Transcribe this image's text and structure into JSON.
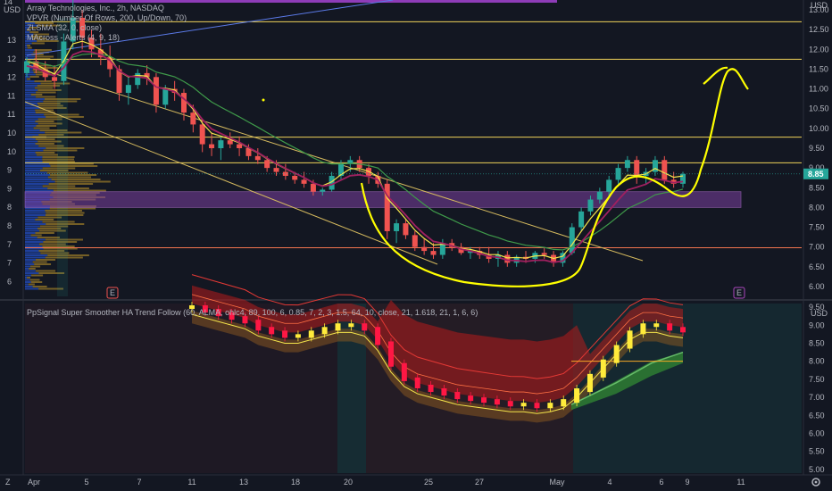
{
  "main_legend": {
    "title": "Array Technologies, Inc., 2h, NASDAQ",
    "vpvr": "VPVR (Number Of Rows, 200, Up/Down, 70)",
    "zlsma": "ZLSMA (32, 0, close)",
    "macross": "MAcross - Alerts (4, 9, 18)"
  },
  "sub_legend": {
    "title": "PpSignal Super Smoother HA Trend Follow (60, ALMA, ohlc4, 89, 100, 6, 0.85, 7, 2, 3, 1.5, 64, 10, close, 21, 1.618, 21, 1, 6, 6)"
  },
  "left_axis": {
    "unit": "USD",
    "top_value": "14",
    "ticks": [
      "13",
      "12",
      "12",
      "11",
      "11",
      "10",
      "10",
      "9",
      "9",
      "8",
      "8",
      "7",
      "7",
      "6"
    ]
  },
  "right_axis": {
    "unit": "USD",
    "ticks": [
      "13.00",
      "12.50",
      "12.00",
      "11.50",
      "11.00",
      "10.50",
      "10.00",
      "9.50",
      "9.00",
      "8.50",
      "8.00",
      "7.50",
      "7.00",
      "6.50",
      "6.00"
    ],
    "current_price_label": "8.85",
    "sub_unit": "USD",
    "sub_ticks": [
      "9.50",
      "9.00",
      "8.50",
      "8.00",
      "7.50",
      "7.00",
      "6.50",
      "6.00",
      "5.50",
      "5.00"
    ]
  },
  "x_axis": {
    "labels": [
      "Apr",
      "5",
      "7",
      "11",
      "13",
      "18",
      "20",
      "25",
      "27",
      "May",
      "4",
      "6",
      "9",
      "11"
    ]
  },
  "earnings_markers": [
    "E",
    "E"
  ],
  "corner_icon": "Z",
  "settings_icon": "gear-icon",
  "colors": {
    "background": "#131722",
    "up": "#26a69a",
    "down": "#ef5350",
    "horizontal_line": "#f0d35a",
    "trend_channel": "#d4b95e",
    "support_line": "#f2744f",
    "zone": "#7b3fa0",
    "drawing": "#ffff00",
    "zlsma": "#a02060",
    "ma_green": "#3f9a4a",
    "ma_yellow": "#f5e54b"
  },
  "chart_data": [
    {
      "type": "candlestick",
      "title": "Array Technologies, Inc., 2h, NASDAQ",
      "ylim": [
        5.75,
        13.25
      ],
      "x_labels": [
        "Apr",
        "5",
        "7",
        "11",
        "13",
        "18",
        "20",
        "25",
        "27",
        "May",
        "4",
        "6",
        "9",
        "11"
      ],
      "horizontal_levels": [
        12.7,
        11.75,
        9.78,
        9.13,
        6.98
      ],
      "zone": [
        8.0,
        8.4
      ],
      "last_price": 8.85,
      "ohlc": [
        [
          11.4,
          11.8,
          11.3,
          11.7
        ],
        [
          11.7,
          12.0,
          11.4,
          11.5
        ],
        [
          11.5,
          11.7,
          11.2,
          11.3
        ],
        [
          11.3,
          11.6,
          11.0,
          11.2
        ],
        [
          11.2,
          12.4,
          11.1,
          12.2
        ],
        [
          12.2,
          13.3,
          12.0,
          12.8
        ],
        [
          12.8,
          13.0,
          12.0,
          12.3
        ],
        [
          12.3,
          12.5,
          11.8,
          12.0
        ],
        [
          12.0,
          12.4,
          11.6,
          11.8
        ],
        [
          11.8,
          12.1,
          11.3,
          11.5
        ],
        [
          11.5,
          11.6,
          10.7,
          10.9
        ],
        [
          10.9,
          11.3,
          10.6,
          11.1
        ],
        [
          11.1,
          11.5,
          11.0,
          11.4
        ],
        [
          11.4,
          11.6,
          11.1,
          11.3
        ],
        [
          11.3,
          11.4,
          10.4,
          10.6
        ],
        [
          10.6,
          11.1,
          10.5,
          11.0
        ],
        [
          11.0,
          11.2,
          10.7,
          10.9
        ],
        [
          10.9,
          11.0,
          10.2,
          10.4
        ],
        [
          10.4,
          10.6,
          9.9,
          10.1
        ],
        [
          10.1,
          10.2,
          9.4,
          9.6
        ],
        [
          9.6,
          9.9,
          9.3,
          9.5
        ],
        [
          9.5,
          9.8,
          9.2,
          9.7
        ],
        [
          9.7,
          9.9,
          9.5,
          9.6
        ],
        [
          9.6,
          9.8,
          9.3,
          9.5
        ],
        [
          9.5,
          9.6,
          9.2,
          9.3
        ],
        [
          9.3,
          9.5,
          9.1,
          9.2
        ],
        [
          9.2,
          9.3,
          8.9,
          9.0
        ],
        [
          9.0,
          9.2,
          8.8,
          8.9
        ],
        [
          8.9,
          9.1,
          8.7,
          8.8
        ],
        [
          8.8,
          8.9,
          8.6,
          8.7
        ],
        [
          8.7,
          8.9,
          8.5,
          8.6
        ],
        [
          8.6,
          8.7,
          8.3,
          8.4
        ],
        [
          8.4,
          8.5,
          8.3,
          8.45
        ],
        [
          8.45,
          8.9,
          8.4,
          8.8
        ],
        [
          8.8,
          9.2,
          8.7,
          9.1
        ],
        [
          9.1,
          9.3,
          8.9,
          9.2
        ],
        [
          9.2,
          9.3,
          8.9,
          9.0
        ],
        [
          9.0,
          9.1,
          8.6,
          8.8
        ],
        [
          8.8,
          8.9,
          8.5,
          8.6
        ],
        [
          8.6,
          8.7,
          7.2,
          7.4
        ],
        [
          7.4,
          7.7,
          7.1,
          7.6
        ],
        [
          7.6,
          7.7,
          7.2,
          7.3
        ],
        [
          7.3,
          7.4,
          6.9,
          7.0
        ],
        [
          7.0,
          7.2,
          6.8,
          6.9
        ],
        [
          6.9,
          7.1,
          6.7,
          6.8
        ],
        [
          6.8,
          7.2,
          6.7,
          7.1
        ],
        [
          7.1,
          7.2,
          6.9,
          7.0
        ],
        [
          7.0,
          7.1,
          6.8,
          6.85
        ],
        [
          6.85,
          7.0,
          6.7,
          6.9
        ],
        [
          6.9,
          7.0,
          6.7,
          6.8
        ],
        [
          6.8,
          7.0,
          6.6,
          6.7
        ],
        [
          6.7,
          6.9,
          6.5,
          6.8
        ],
        [
          6.8,
          6.9,
          6.5,
          6.6
        ],
        [
          6.6,
          6.8,
          6.5,
          6.75
        ],
        [
          6.75,
          6.9,
          6.6,
          6.7
        ],
        [
          6.7,
          6.9,
          6.6,
          6.85
        ],
        [
          6.85,
          7.0,
          6.7,
          6.8
        ],
        [
          6.8,
          6.9,
          6.5,
          6.6
        ],
        [
          6.6,
          6.9,
          6.5,
          6.85
        ],
        [
          6.85,
          7.6,
          6.8,
          7.5
        ],
        [
          7.5,
          8.0,
          7.4,
          7.9
        ],
        [
          7.9,
          8.3,
          7.8,
          8.2
        ],
        [
          8.2,
          8.5,
          8.1,
          8.4
        ],
        [
          8.4,
          8.8,
          8.3,
          8.7
        ],
        [
          8.7,
          9.1,
          8.6,
          9.0
        ],
        [
          9.0,
          9.3,
          8.9,
          9.2
        ],
        [
          9.2,
          9.3,
          8.6,
          8.8
        ],
        [
          8.8,
          9.0,
          8.6,
          8.9
        ],
        [
          8.9,
          9.3,
          8.8,
          9.2
        ],
        [
          9.2,
          9.3,
          8.6,
          8.7
        ],
        [
          8.7,
          8.9,
          8.5,
          8.6
        ],
        [
          8.6,
          8.9,
          8.5,
          8.85
        ]
      ]
    },
    {
      "type": "candlestick",
      "title": "PpSignal Super Smoother HA Trend Follow",
      "ylim": [
        4.9,
        9.6
      ],
      "series": [
        {
          "name": "",
          "values": [
            9.5,
            9.4,
            9.3,
            9.2,
            9.1,
            8.9,
            8.8,
            8.7,
            8.7,
            8.8,
            8.9,
            9.0,
            9.0,
            8.9,
            8.5,
            7.9,
            7.5,
            7.3,
            7.2,
            7.1,
            7.0,
            6.95,
            6.9,
            6.85,
            6.8,
            6.8,
            6.75,
            6.8,
            6.9,
            7.2,
            7.6,
            8.0,
            8.4,
            8.8,
            9.0,
            9.0,
            8.9,
            8.85
          ]
        }
      ]
    }
  ]
}
